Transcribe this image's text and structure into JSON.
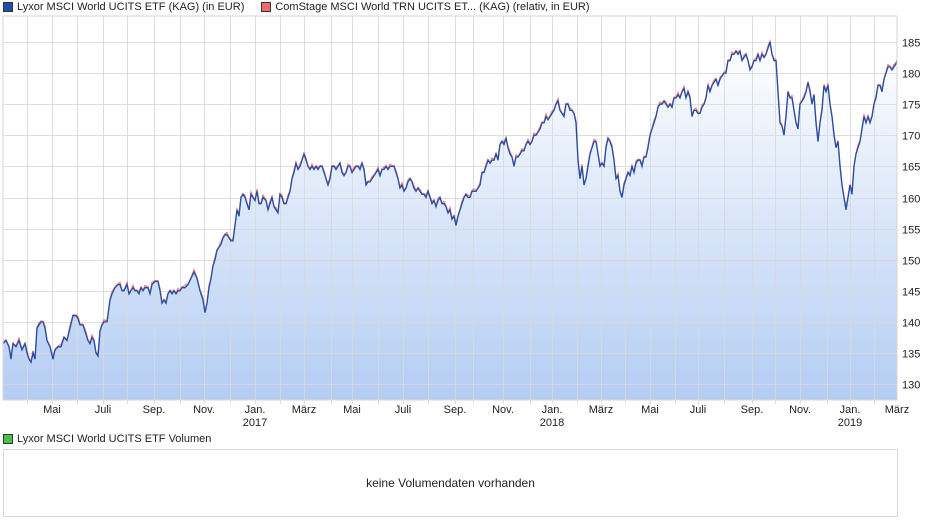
{
  "legend": {
    "series1": {
      "label": "Lyxor MSCI World UCITS ETF (KAG) (in EUR)",
      "color": "#1f4fa8"
    },
    "series2": {
      "label": "ComStage MSCI World TRN UCITS ET... (KAG) (relativ, in EUR)",
      "color": "#f06a6a"
    }
  },
  "volume": {
    "legend_label": "Lyxor MSCI World UCITS ETF Volumen",
    "legend_color": "#4cbf4c",
    "message": "keine Volumendaten vorhanden"
  },
  "chart_data": {
    "type": "line",
    "title": "",
    "xlabel": "",
    "ylabel": "",
    "ylim": [
      127.5,
      189
    ],
    "grid": true,
    "legend_position": "top",
    "y_ticks": [
      130,
      135,
      140,
      145,
      150,
      155,
      160,
      165,
      170,
      175,
      180,
      185
    ],
    "x_ticks": [
      {
        "label": "Mai",
        "year": ""
      },
      {
        "label": "Juli",
        "year": ""
      },
      {
        "label": "Sep.",
        "year": ""
      },
      {
        "label": "Nov.",
        "year": ""
      },
      {
        "label": "Jan.",
        "year": "2017"
      },
      {
        "label": "März",
        "year": ""
      },
      {
        "label": "Mai",
        "year": ""
      },
      {
        "label": "Juli",
        "year": ""
      },
      {
        "label": "Sep.",
        "year": ""
      },
      {
        "label": "Nov.",
        "year": ""
      },
      {
        "label": "Jan.",
        "year": "2018"
      },
      {
        "label": "März",
        "year": ""
      },
      {
        "label": "Mai",
        "year": ""
      },
      {
        "label": "Juli",
        "year": ""
      },
      {
        "label": "Sep.",
        "year": ""
      },
      {
        "label": "Nov.",
        "year": ""
      },
      {
        "label": "Jan.",
        "year": "2019"
      },
      {
        "label": "März",
        "year": ""
      }
    ],
    "x": [
      "2016-03",
      "2016-04",
      "2016-05",
      "2016-06",
      "2016-07",
      "2016-08",
      "2016-09",
      "2016-10",
      "2016-11",
      "2016-12",
      "2017-01",
      "2017-02",
      "2017-03",
      "2017-04",
      "2017-05",
      "2017-06",
      "2017-07",
      "2017-08",
      "2017-09",
      "2017-10",
      "2017-11",
      "2017-12",
      "2018-01",
      "2018-02",
      "2018-03",
      "2018-04",
      "2018-05",
      "2018-06",
      "2018-07",
      "2018-08",
      "2018-09",
      "2018-10",
      "2018-11",
      "2018-12",
      "2019-01",
      "2019-02",
      "2019-03"
    ],
    "series": [
      {
        "name": "Lyxor MSCI World UCITS ETF (KAG) (in EUR)",
        "values": [
          136.5,
          135.0,
          139.5,
          141.0,
          146.0,
          145.5,
          146.0,
          145.0,
          142.0,
          152.5,
          160.0,
          158.0,
          166.0,
          165.0,
          165.5,
          163.0,
          163.5,
          160.5,
          158.0,
          163.0,
          166.0,
          168.0,
          174.0,
          168.0,
          167.0,
          163.0,
          170.0,
          176.0,
          180.0,
          183.5,
          184.0,
          170.0,
          174.0,
          166.0,
          160.0,
          171.0,
          181.5
        ]
      },
      {
        "name": "ComStage MSCI World TRN UCITS ET... (KAG) (relativ, in EUR)",
        "values": [
          137.0,
          135.5,
          140.0,
          141.5,
          146.5,
          146.0,
          146.5,
          145.5,
          142.5,
          153.0,
          160.5,
          158.5,
          166.5,
          165.5,
          166.0,
          163.5,
          164.0,
          161.0,
          158.5,
          163.5,
          166.5,
          168.5,
          174.5,
          168.5,
          167.5,
          163.5,
          170.5,
          176.5,
          180.5,
          184.0,
          184.0,
          170.0,
          174.0,
          166.0,
          160.0,
          171.0,
          181.5
        ]
      }
    ]
  },
  "plot_points": [
    [
      3,
      136.5
    ],
    [
      6,
      137
    ],
    [
      9,
      136
    ],
    [
      11,
      134
    ],
    [
      13,
      136.5
    ],
    [
      16,
      136
    ],
    [
      19,
      137
    ],
    [
      22,
      135.5
    ],
    [
      25,
      136.5
    ],
    [
      27,
      135
    ],
    [
      29,
      134
    ],
    [
      31,
      133.5
    ],
    [
      33,
      135
    ],
    [
      35,
      134
    ],
    [
      37,
      139
    ],
    [
      39,
      139.5
    ],
    [
      41,
      140
    ],
    [
      43,
      140
    ],
    [
      45,
      139
    ],
    [
      47,
      137
    ],
    [
      50,
      136
    ],
    [
      53,
      134
    ],
    [
      55,
      135.5
    ],
    [
      58,
      136
    ],
    [
      61,
      136
    ],
    [
      64,
      137.5
    ],
    [
      67,
      137
    ],
    [
      70,
      139
    ],
    [
      73,
      141
    ],
    [
      76,
      141
    ],
    [
      78,
      140.5
    ],
    [
      80,
      139.5
    ],
    [
      83,
      139.5
    ],
    [
      86,
      138
    ],
    [
      88,
      137
    ],
    [
      90,
      136.5
    ],
    [
      92,
      137.5
    ],
    [
      94,
      137
    ],
    [
      96,
      135
    ],
    [
      98,
      134.5
    ],
    [
      100,
      138.5
    ],
    [
      102,
      139.5
    ],
    [
      104,
      140
    ],
    [
      107,
      140
    ],
    [
      110,
      143.5
    ],
    [
      112,
      144.5
    ],
    [
      115,
      145.5
    ],
    [
      118,
      146
    ],
    [
      120,
      146
    ],
    [
      122,
      145
    ],
    [
      124,
      145
    ],
    [
      127,
      146
    ],
    [
      129,
      144.5
    ],
    [
      131,
      145
    ],
    [
      133,
      145.5
    ],
    [
      135,
      145
    ],
    [
      137,
      145
    ],
    [
      139,
      144.5
    ],
    [
      141,
      145.5
    ],
    [
      143,
      145
    ],
    [
      145,
      145.5
    ],
    [
      148,
      145.5
    ],
    [
      150,
      144.5
    ],
    [
      152,
      146
    ],
    [
      155,
      146.5
    ],
    [
      158,
      146.5
    ],
    [
      160,
      145
    ],
    [
      162,
      143
    ],
    [
      164,
      143.5
    ],
    [
      166,
      143
    ],
    [
      168,
      144.5
    ],
    [
      170,
      145
    ],
    [
      172,
      144.5
    ],
    [
      174,
      145
    ],
    [
      176,
      144.5
    ],
    [
      178,
      145
    ],
    [
      180,
      145
    ],
    [
      182,
      145.5
    ],
    [
      185,
      145.5
    ],
    [
      188,
      146
    ],
    [
      191,
      147
    ],
    [
      194,
      148
    ],
    [
      197,
      147
    ],
    [
      200,
      145
    ],
    [
      203,
      143.5
    ],
    [
      205,
      141.5
    ],
    [
      207,
      143
    ],
    [
      209,
      145.5
    ],
    [
      211,
      147
    ],
    [
      213,
      149
    ],
    [
      215,
      150
    ],
    [
      217,
      151.5
    ],
    [
      219,
      152
    ],
    [
      221,
      152.5
    ],
    [
      223,
      153.5
    ],
    [
      225,
      154
    ],
    [
      227,
      154
    ],
    [
      229,
      153.5
    ],
    [
      231,
      153
    ],
    [
      233,
      153
    ],
    [
      235,
      155.5
    ],
    [
      237,
      158
    ],
    [
      239,
      157
    ],
    [
      241,
      160
    ],
    [
      243,
      160.5
    ],
    [
      245,
      160
    ],
    [
      247,
      159
    ],
    [
      249,
      158
    ],
    [
      251,
      160.5
    ],
    [
      253,
      160
    ],
    [
      255,
      159.5
    ],
    [
      257,
      161
    ],
    [
      259,
      159
    ],
    [
      261,
      159
    ],
    [
      263,
      160
    ],
    [
      266,
      159.5
    ],
    [
      268,
      158
    ],
    [
      270,
      159
    ],
    [
      272,
      160
    ],
    [
      274,
      158.5
    ],
    [
      276,
      158
    ],
    [
      278,
      157.5
    ],
    [
      280,
      160.5
    ],
    [
      282,
      160
    ],
    [
      284,
      159
    ],
    [
      286,
      159
    ],
    [
      288,
      160
    ],
    [
      290,
      161
    ],
    [
      292,
      163
    ],
    [
      294,
      164
    ],
    [
      296,
      165.5
    ],
    [
      298,
      164.5
    ],
    [
      300,
      165
    ],
    [
      302,
      166
    ],
    [
      304,
      167
    ],
    [
      306,
      166
    ],
    [
      308,
      165
    ],
    [
      310,
      164.5
    ],
    [
      312,
      165
    ],
    [
      314,
      164.5
    ],
    [
      316,
      165
    ],
    [
      318,
      164.5
    ],
    [
      320,
      165
    ],
    [
      322,
      165
    ],
    [
      324,
      164
    ],
    [
      326,
      163
    ],
    [
      328,
      162
    ],
    [
      330,
      163
    ],
    [
      332,
      165
    ],
    [
      334,
      165
    ],
    [
      336,
      164.5
    ],
    [
      338,
      165
    ],
    [
      340,
      165.5
    ],
    [
      342,
      164
    ],
    [
      344,
      163.5
    ],
    [
      346,
      164
    ],
    [
      348,
      165
    ],
    [
      350,
      165
    ],
    [
      352,
      164
    ],
    [
      354,
      164.5
    ],
    [
      356,
      165
    ],
    [
      358,
      165
    ],
    [
      360,
      164.5
    ],
    [
      362,
      165.5
    ],
    [
      364,
      164.5
    ],
    [
      366,
      162
    ],
    [
      368,
      162.5
    ],
    [
      370,
      162.5
    ],
    [
      372,
      163
    ],
    [
      374,
      163.5
    ],
    [
      376,
      164
    ],
    [
      378,
      164.5
    ],
    [
      380,
      163.5
    ],
    [
      382,
      164.5
    ],
    [
      384,
      164.5
    ],
    [
      386,
      165
    ],
    [
      388,
      164.5
    ],
    [
      390,
      165
    ],
    [
      392,
      165
    ],
    [
      394,
      165
    ],
    [
      396,
      164
    ],
    [
      398,
      163
    ],
    [
      400,
      161.5
    ],
    [
      402,
      162
    ],
    [
      404,
      161
    ],
    [
      406,
      161.5
    ],
    [
      408,
      162.5
    ],
    [
      410,
      163
    ],
    [
      412,
      162.5
    ],
    [
      414,
      161.5
    ],
    [
      416,
      161
    ],
    [
      418,
      161.5
    ],
    [
      420,
      161
    ],
    [
      422,
      160.5
    ],
    [
      424,
      160.5
    ],
    [
      426,
      160
    ],
    [
      428,
      161
    ],
    [
      430,
      160
    ],
    [
      432,
      159
    ],
    [
      434,
      159.5
    ],
    [
      436,
      158.5
    ],
    [
      438,
      159.5
    ],
    [
      440,
      160
    ],
    [
      442,
      159
    ],
    [
      444,
      159
    ],
    [
      446,
      158.5
    ],
    [
      448,
      157.5
    ],
    [
      450,
      158
    ],
    [
      452,
      156.5
    ],
    [
      454,
      157
    ],
    [
      456,
      155.5
    ],
    [
      458,
      157
    ],
    [
      460,
      158
    ],
    [
      462,
      159
    ],
    [
      464,
      160
    ],
    [
      466,
      160.5
    ],
    [
      468,
      160
    ],
    [
      470,
      160
    ],
    [
      472,
      161
    ],
    [
      474,
      161
    ],
    [
      476,
      161
    ],
    [
      478,
      161.5
    ],
    [
      480,
      162
    ],
    [
      482,
      164
    ],
    [
      484,
      164
    ],
    [
      486,
      165
    ],
    [
      488,
      166
    ],
    [
      490,
      165.5
    ],
    [
      492,
      166
    ],
    [
      494,
      166
    ],
    [
      496,
      167
    ],
    [
      498,
      166
    ],
    [
      500,
      168.5
    ],
    [
      502,
      169
    ],
    [
      504,
      168.5
    ],
    [
      506,
      169.5
    ],
    [
      508,
      168
    ],
    [
      510,
      167
    ],
    [
      512,
      166.5
    ],
    [
      514,
      165
    ],
    [
      516,
      166.5
    ],
    [
      518,
      166.5
    ],
    [
      520,
      167
    ],
    [
      522,
      167.5
    ],
    [
      524,
      167.5
    ],
    [
      526,
      168.5
    ],
    [
      528,
      169
    ],
    [
      530,
      168.5
    ],
    [
      532,
      169
    ],
    [
      534,
      170
    ],
    [
      536,
      170
    ],
    [
      538,
      170.5
    ],
    [
      540,
      171
    ],
    [
      542,
      172
    ],
    [
      544,
      172
    ],
    [
      546,
      173
    ],
    [
      548,
      172.5
    ],
    [
      550,
      173
    ],
    [
      552,
      173.5
    ],
    [
      554,
      174
    ],
    [
      556,
      175
    ],
    [
      558,
      175.5
    ],
    [
      560,
      174
    ],
    [
      562,
      173.5
    ],
    [
      564,
      173
    ],
    [
      566,
      175
    ],
    [
      568,
      175
    ],
    [
      570,
      174
    ],
    [
      572,
      174
    ],
    [
      574,
      173.5
    ],
    [
      576,
      172
    ],
    [
      578,
      166
    ],
    [
      580,
      163
    ],
    [
      582,
      165
    ],
    [
      584,
      162
    ],
    [
      586,
      163
    ],
    [
      588,
      165
    ],
    [
      590,
      167
    ],
    [
      592,
      168
    ],
    [
      594,
      169
    ],
    [
      596,
      169
    ],
    [
      598,
      167
    ],
    [
      600,
      165
    ],
    [
      602,
      165.5
    ],
    [
      604,
      165
    ],
    [
      606,
      168
    ],
    [
      608,
      169.5
    ],
    [
      610,
      169
    ],
    [
      612,
      168
    ],
    [
      614,
      166
    ],
    [
      616,
      163
    ],
    [
      618,
      163.5
    ],
    [
      620,
      161
    ],
    [
      622,
      160
    ],
    [
      624,
      162
    ],
    [
      626,
      163
    ],
    [
      628,
      164
    ],
    [
      630,
      163.5
    ],
    [
      632,
      165
    ],
    [
      634,
      164
    ],
    [
      636,
      165.5
    ],
    [
      638,
      166
    ],
    [
      640,
      166
    ],
    [
      642,
      165
    ],
    [
      644,
      166.5
    ],
    [
      646,
      166.5
    ],
    [
      648,
      168
    ],
    [
      650,
      170
    ],
    [
      652,
      171
    ],
    [
      654,
      172
    ],
    [
      656,
      173
    ],
    [
      658,
      174.5
    ],
    [
      660,
      175
    ],
    [
      662,
      175
    ],
    [
      664,
      175.5
    ],
    [
      666,
      175
    ],
    [
      668,
      174.5
    ],
    [
      670,
      175
    ],
    [
      672,
      174.5
    ],
    [
      674,
      176
    ],
    [
      676,
      176
    ],
    [
      678,
      176.5
    ],
    [
      680,
      176
    ],
    [
      682,
      177
    ],
    [
      684,
      177.5
    ],
    [
      686,
      176
    ],
    [
      688,
      177
    ],
    [
      690,
      176
    ],
    [
      692,
      173
    ],
    [
      694,
      174
    ],
    [
      696,
      174
    ],
    [
      698,
      173.5
    ],
    [
      700,
      173.5
    ],
    [
      702,
      174.5
    ],
    [
      704,
      175
    ],
    [
      706,
      176
    ],
    [
      708,
      178
    ],
    [
      710,
      177
    ],
    [
      712,
      178
    ],
    [
      714,
      178.5
    ],
    [
      716,
      179
    ],
    [
      718,
      178
    ],
    [
      720,
      179
    ],
    [
      722,
      179.5
    ],
    [
      724,
      180
    ],
    [
      726,
      180
    ],
    [
      728,
      182
    ],
    [
      730,
      182
    ],
    [
      732,
      183
    ],
    [
      734,
      183
    ],
    [
      736,
      183.5
    ],
    [
      738,
      183
    ],
    [
      740,
      183.5
    ],
    [
      742,
      182
    ],
    [
      744,
      182.5
    ],
    [
      746,
      183
    ],
    [
      748,
      182
    ],
    [
      750,
      180.5
    ],
    [
      752,
      181
    ],
    [
      754,
      182
    ],
    [
      756,
      182
    ],
    [
      758,
      183
    ],
    [
      760,
      182
    ],
    [
      762,
      183
    ],
    [
      764,
      182.5
    ],
    [
      766,
      183
    ],
    [
      768,
      184
    ],
    [
      770,
      185
    ],
    [
      772,
      183
    ],
    [
      774,
      182
    ],
    [
      776,
      182
    ],
    [
      778,
      177
    ],
    [
      780,
      172
    ],
    [
      782,
      171.5
    ],
    [
      784,
      170
    ],
    [
      786,
      173
    ],
    [
      788,
      177
    ],
    [
      790,
      176
    ],
    [
      792,
      176
    ],
    [
      794,
      174
    ],
    [
      796,
      172
    ],
    [
      798,
      171
    ],
    [
      800,
      175
    ],
    [
      802,
      175.5
    ],
    [
      804,
      176
    ],
    [
      806,
      177
    ],
    [
      808,
      178.5
    ],
    [
      810,
      177
    ],
    [
      812,
      175
    ],
    [
      814,
      176.5
    ],
    [
      816,
      172
    ],
    [
      818,
      169
    ],
    [
      820,
      172
    ],
    [
      822,
      174
    ],
    [
      824,
      178
    ],
    [
      826,
      177
    ],
    [
      828,
      178
    ],
    [
      830,
      175
    ],
    [
      832,
      173
    ],
    [
      834,
      170
    ],
    [
      836,
      168
    ],
    [
      838,
      169
    ],
    [
      840,
      165
    ],
    [
      842,
      162
    ],
    [
      844,
      160
    ],
    [
      846,
      158
    ],
    [
      848,
      160
    ],
    [
      850,
      162
    ],
    [
      852,
      160.5
    ],
    [
      854,
      165
    ],
    [
      856,
      167
    ],
    [
      858,
      168
    ],
    [
      860,
      169
    ],
    [
      862,
      171
    ],
    [
      864,
      173
    ],
    [
      866,
      172
    ],
    [
      868,
      173
    ],
    [
      870,
      172
    ],
    [
      872,
      173
    ],
    [
      874,
      175
    ],
    [
      876,
      176
    ],
    [
      878,
      178
    ],
    [
      880,
      178
    ],
    [
      882,
      177
    ],
    [
      884,
      179
    ],
    [
      886,
      180
    ],
    [
      888,
      181
    ],
    [
      890,
      181
    ],
    [
      892,
      180.5
    ],
    [
      894,
      181
    ],
    [
      896,
      181.5
    ],
    [
      897,
      182
    ]
  ]
}
